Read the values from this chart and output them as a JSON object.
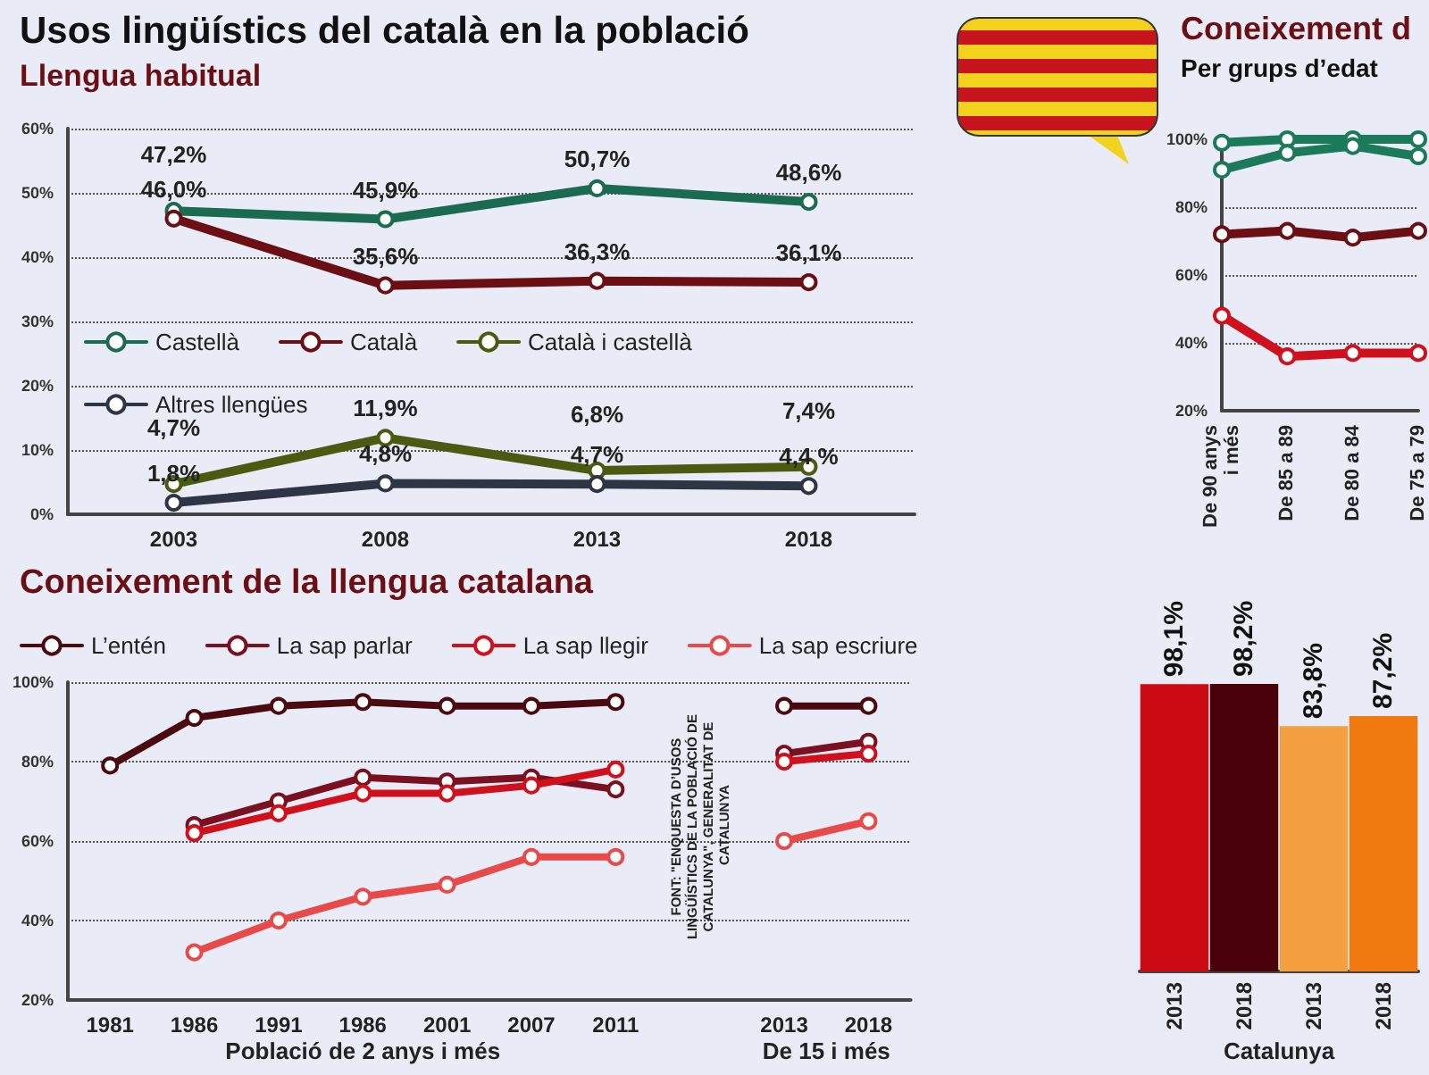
{
  "chart_data": [
    {
      "type": "line",
      "title": "Usos lingüístics del català en la població",
      "subtitle": "Llengua habitual",
      "categories": [
        "2003",
        "2008",
        "2013",
        "2018"
      ],
      "series": [
        {
          "name": "Castellà",
          "color": "#1a6b50",
          "values": [
            47.2,
            45.9,
            50.7,
            48.6
          ],
          "value_labels": [
            "47,2%",
            "45,9%",
            "50,7%",
            "48,6%"
          ]
        },
        {
          "name": "Català",
          "color": "#6b0f14",
          "values": [
            46.0,
            35.6,
            36.3,
            36.1
          ],
          "value_labels": [
            "46,0%",
            "35,6%",
            "36,3%",
            "36,1%"
          ]
        },
        {
          "name": "Català i castellà",
          "color": "#4a5a10",
          "values": [
            4.7,
            11.9,
            6.8,
            7.4
          ],
          "value_labels": [
            "4,7%",
            "11,9%",
            "6,8%",
            "7,4%"
          ]
        },
        {
          "name": "Altres llengües",
          "color": "#2e3545",
          "values": [
            1.8,
            4.8,
            4.7,
            4.4
          ],
          "value_labels": [
            "1,8%",
            "4,8%",
            "4,7%",
            "4,4 %"
          ]
        }
      ],
      "ylim": [
        0,
        60
      ],
      "yticks": [
        {
          "value": 0,
          "label": "0%"
        },
        {
          "value": 10,
          "label": "10%"
        },
        {
          "value": 20,
          "label": "20%"
        },
        {
          "value": 30,
          "label": "30%"
        },
        {
          "value": 40,
          "label": "40%"
        },
        {
          "value": 50,
          "label": "50%"
        },
        {
          "value": 60,
          "label": "60%"
        }
      ],
      "grid": "y",
      "legend": "left",
      "marker": "circle",
      "line_style": "solid"
    },
    {
      "type": "line",
      "title": "Coneixement d",
      "subtitle": "Per grups d’edat",
      "categories": [
        "De 90 anys i més",
        "De 85 a 89",
        "De 80 a 84",
        "De 75 a 79"
      ],
      "series": [
        {
          "color": "#1a7a5a",
          "values": [
            99,
            100,
            100,
            100
          ]
        },
        {
          "color": "#1a7a5a",
          "values": [
            91,
            96,
            98,
            95
          ]
        },
        {
          "color": "#6b0f14",
          "values": [
            72,
            73,
            71,
            73
          ]
        },
        {
          "color": "#d0101c",
          "values": [
            48,
            36,
            37,
            37
          ]
        }
      ],
      "ylim": [
        20,
        100
      ],
      "yticks": [
        {
          "value": 20,
          "label": "20%"
        },
        {
          "value": 40,
          "label": "40%"
        },
        {
          "value": 60,
          "label": "60%"
        },
        {
          "value": 80,
          "label": "80%"
        },
        {
          "value": 100,
          "label": "100%"
        }
      ],
      "grid": "y",
      "marker": "circle",
      "line_style": "solid"
    },
    {
      "type": "line",
      "title": "Coneixement de la llengua catalana",
      "categories": [
        "1981",
        "1986",
        "1991",
        "1986",
        "2001",
        "2007",
        "2011",
        null,
        "2013",
        "2018"
      ],
      "series": [
        {
          "name": "L’entén",
          "color": "#4a0a10",
          "values": [
            79,
            91,
            94,
            95,
            94,
            94,
            95,
            null,
            94,
            94
          ]
        },
        {
          "name": "La sap parlar",
          "color": "#7a1020",
          "values": [
            null,
            64,
            70,
            76,
            75,
            76,
            73,
            null,
            82,
            85
          ]
        },
        {
          "name": "La sap llegir",
          "color": "#d0101c",
          "values": [
            null,
            62,
            67,
            72,
            72,
            74,
            78,
            null,
            80,
            82
          ]
        },
        {
          "name": "La sap escriure",
          "color": "#e84a4a",
          "values": [
            null,
            32,
            40,
            46,
            49,
            56,
            56,
            null,
            60,
            65
          ]
        }
      ],
      "ylim": [
        20,
        100
      ],
      "yticks": [
        {
          "value": 20,
          "label": "20%"
        },
        {
          "value": 40,
          "label": "40%"
        },
        {
          "value": 60,
          "label": "60%"
        },
        {
          "value": 80,
          "label": "80%"
        },
        {
          "value": 100,
          "label": "100%"
        }
      ],
      "grid": "y",
      "legend": "top",
      "marker": "circle",
      "line_style": "solid",
      "annotations": [
        "Població de 2 anys i més",
        "De 15 i més",
        "FONT: \"ENQUESTA D’USOS LINGÜÍSTICS DE LA POBLACIÓ DE CATALUNYA\", GENERALITAT DE CATALUNYA"
      ]
    },
    {
      "type": "bar",
      "categories": [
        "2013",
        "2018",
        "2013",
        "2018"
      ],
      "values": [
        98.1,
        98.2,
        83.8,
        87.2
      ],
      "colors": [
        "#cc0a14",
        "#4a0008",
        "#f5a040",
        "#f07a10"
      ],
      "value_labels": [
        "98,1%",
        "98,2%",
        "83,8%",
        "87,2%"
      ],
      "annotations": [
        "Catalunya"
      ]
    }
  ]
}
